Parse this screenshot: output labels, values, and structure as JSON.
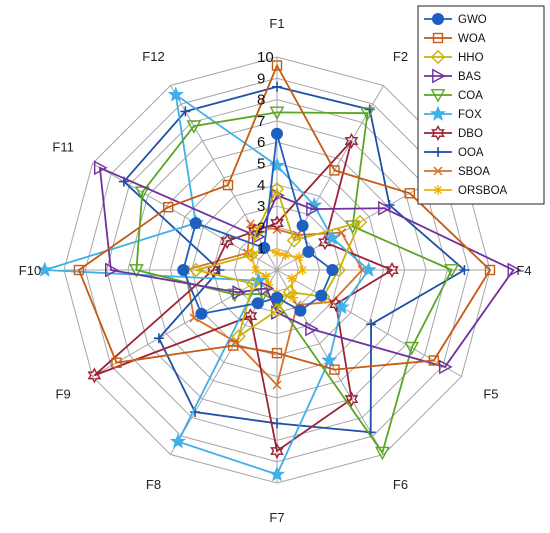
{
  "chart_data": {
    "type": "radar",
    "categories": [
      "F1",
      "F2",
      "F3",
      "F4",
      "F5",
      "F6",
      "F7",
      "F8",
      "F9",
      "F10",
      "F11",
      "F12"
    ],
    "r_ticks": [
      "1",
      "2",
      "3",
      "4",
      "5",
      "6",
      "7",
      "8",
      "9",
      "10"
    ],
    "r_range": [
      0,
      10
    ],
    "legend_position": "top-right",
    "series": [
      {
        "name": "GWO",
        "color": "#1f5fbf",
        "marker": "circle",
        "values": [
          6.4,
          2.4,
          1.7,
          2.6,
          2.4,
          2.2,
          1.3,
          1.8,
          4.1,
          4.4,
          4.4,
          1.2
        ]
      },
      {
        "name": "WOA",
        "color": "#c55a11",
        "marker": "square",
        "values": [
          9.6,
          5.4,
          7.2,
          10.0,
          8.5,
          5.4,
          3.9,
          4.1,
          8.7,
          9.3,
          5.9,
          4.6
        ]
      },
      {
        "name": "HHO",
        "color": "#c9b400",
        "marker": "diamond",
        "values": [
          3.8,
          1.6,
          4.5,
          2.9,
          2.5,
          1.2,
          1.9,
          3.6,
          1.3,
          3.8,
          1.4,
          2.0
        ]
      },
      {
        "name": "BAS",
        "color": "#7030a0",
        "marker": "triangle-right",
        "values": [
          3.5,
          3.3,
          5.8,
          11.1,
          9.1,
          3.2,
          2.0,
          1.0,
          2.1,
          7.8,
          9.6,
          1.8
        ]
      },
      {
        "name": "COA",
        "color": "#5aa624",
        "marker": "triangle-down",
        "values": [
          7.4,
          8.5,
          4.1,
          8.2,
          7.3,
          9.9,
          1.5,
          1.3,
          2.3,
          6.6,
          7.3,
          7.8
        ]
      },
      {
        "name": "FOX",
        "color": "#3fb0e8",
        "marker": "star",
        "values": [
          4.9,
          3.5,
          3.0,
          4.3,
          3.5,
          4.9,
          9.6,
          9.3,
          1.0,
          10.9,
          4.4,
          9.5
        ]
      },
      {
        "name": "DBO",
        "color": "#9b2335",
        "marker": "hexagram",
        "values": [
          2.2,
          7.0,
          2.6,
          5.4,
          3.2,
          7.0,
          8.5,
          2.5,
          9.9,
          3.0,
          2.7,
          2.1
        ]
      },
      {
        "name": "OOA",
        "color": "#1f4fa8",
        "marker": "plus",
        "values": [
          8.6,
          8.7,
          6.1,
          8.8,
          5.1,
          8.8,
          7.2,
          7.7,
          6.4,
          2.7,
          8.3,
          8.6
        ]
      },
      {
        "name": "SBOA",
        "color": "#d8702a",
        "marker": "x",
        "values": [
          1.9,
          1.9,
          3.5,
          4.0,
          3.0,
          1.9,
          5.4,
          3.9,
          4.5,
          4.3,
          1.6,
          2.5
        ]
      },
      {
        "name": "ORSBOA",
        "color": "#f0b000",
        "marker": "asterisk",
        "values": [
          0.8,
          0.8,
          1.2,
          1.2,
          0.8,
          1.5,
          1.1,
          0.8,
          0.6,
          1.0,
          1.4,
          1.2
        ]
      }
    ]
  }
}
